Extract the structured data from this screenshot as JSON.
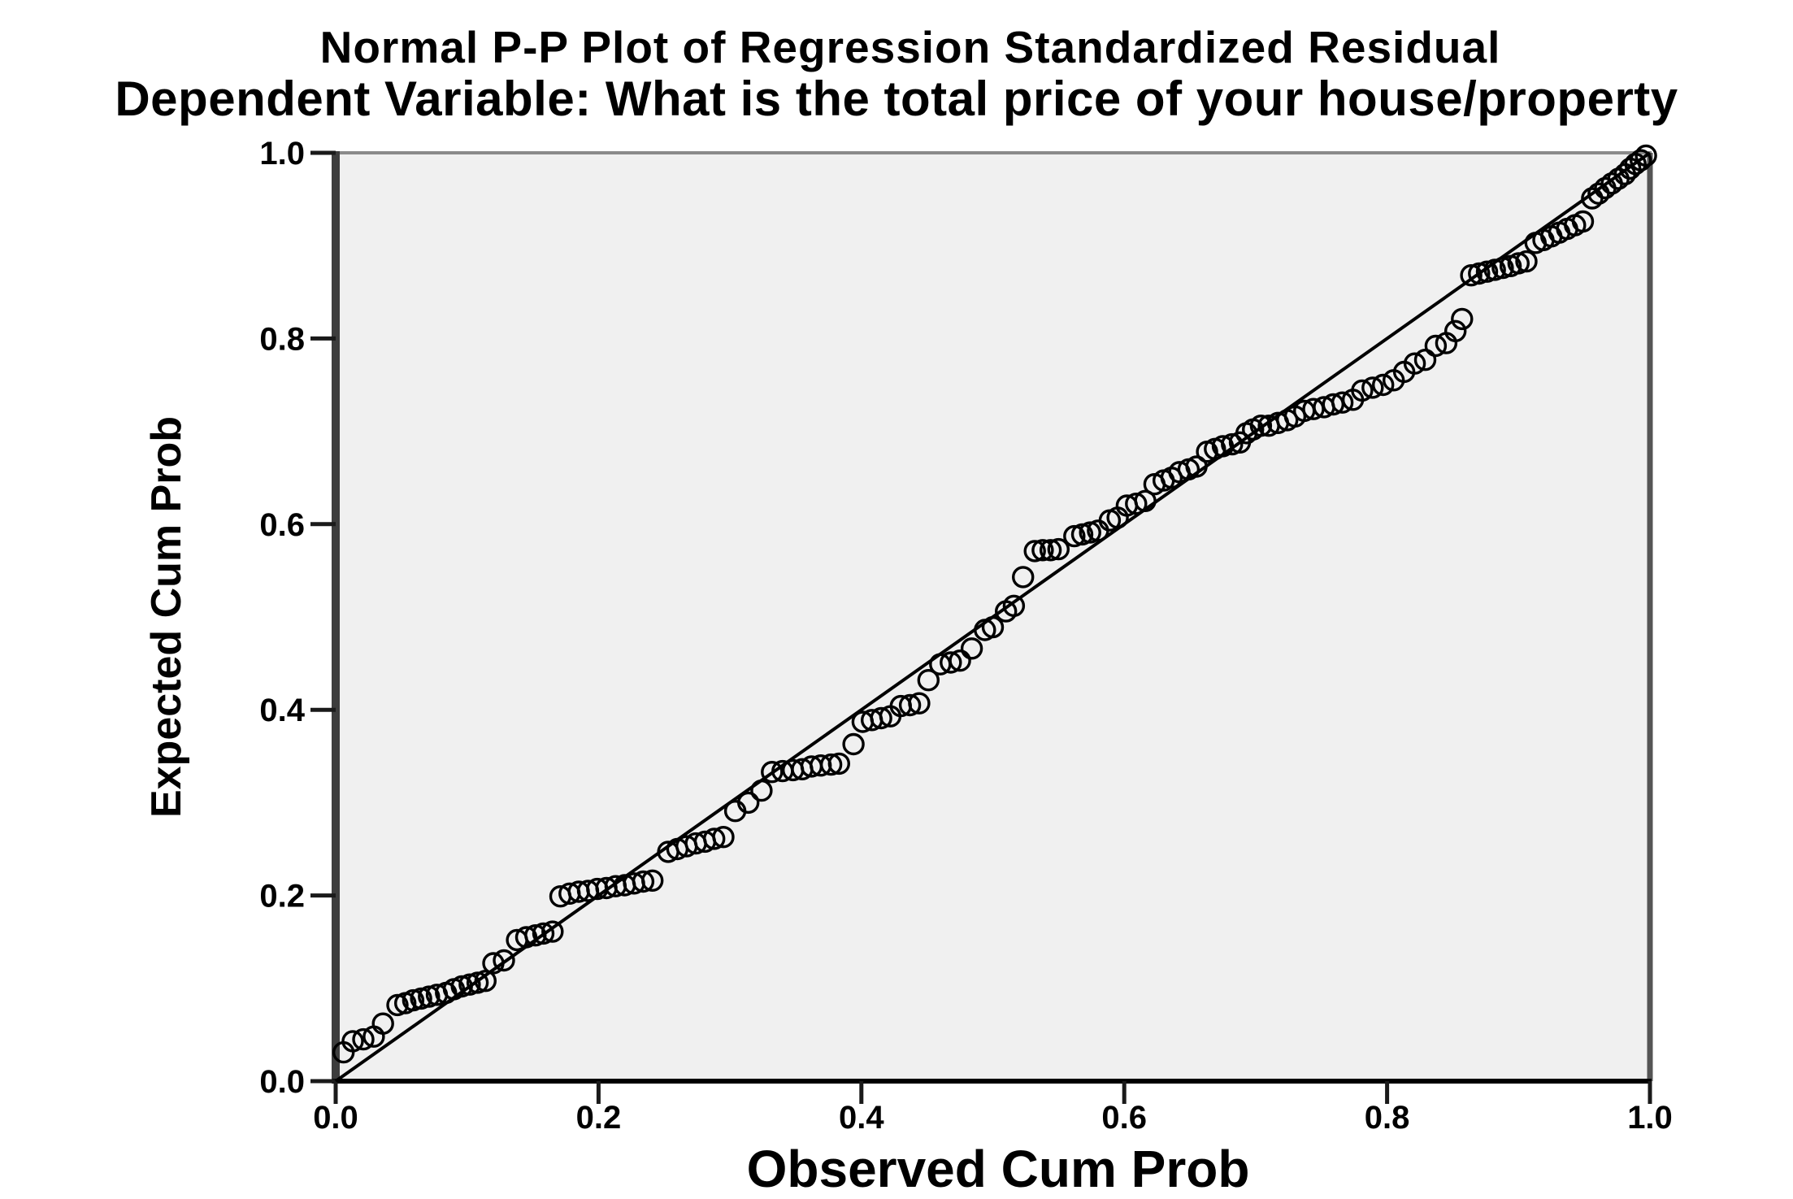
{
  "chart_data": {
    "type": "scatter",
    "title": "Normal P-P Plot of Regression Standardized Residual",
    "subtitle": "Dependent Variable: What is the total price of your house/property",
    "xlabel": "Observed Cum Prob",
    "ylabel": "Expected Cum Prob",
    "xlim": [
      0.0,
      1.0
    ],
    "ylim": [
      0.0,
      1.0
    ],
    "x_ticks": [
      "0.0",
      "0.2",
      "0.4",
      "0.6",
      "0.8",
      "1.0"
    ],
    "y_ticks": [
      "0.0",
      "0.2",
      "0.4",
      "0.6",
      "0.8",
      "1.0"
    ],
    "grid": false,
    "legend": null,
    "marker": "open-circle",
    "colors": {
      "plot_bg": "#f0f0f0",
      "marker_stroke": "#000000",
      "reference_line": "#000000",
      "axis_left": "#3d3d3d",
      "axis_bottom": "#000000",
      "border_top": "#8a8a8a",
      "border_right": "#555555",
      "tick": "#1a1a1a",
      "text": "#000000"
    },
    "reference_line": {
      "from": [
        0,
        0
      ],
      "to": [
        1,
        1
      ]
    },
    "series": [
      {
        "name": "Regression Standardized Residual",
        "points": [
          [
            0.006,
            0.031
          ],
          [
            0.013,
            0.043
          ],
          [
            0.021,
            0.045
          ],
          [
            0.029,
            0.048
          ],
          [
            0.036,
            0.062
          ],
          [
            0.047,
            0.082
          ],
          [
            0.053,
            0.084
          ],
          [
            0.059,
            0.087
          ],
          [
            0.065,
            0.089
          ],
          [
            0.071,
            0.091
          ],
          [
            0.077,
            0.093
          ],
          [
            0.084,
            0.095
          ],
          [
            0.09,
            0.099
          ],
          [
            0.096,
            0.102
          ],
          [
            0.102,
            0.104
          ],
          [
            0.108,
            0.106
          ],
          [
            0.114,
            0.108
          ],
          [
            0.12,
            0.127
          ],
          [
            0.128,
            0.13
          ],
          [
            0.138,
            0.152
          ],
          [
            0.145,
            0.155
          ],
          [
            0.152,
            0.157
          ],
          [
            0.158,
            0.159
          ],
          [
            0.165,
            0.161
          ],
          [
            0.171,
            0.199
          ],
          [
            0.178,
            0.202
          ],
          [
            0.185,
            0.204
          ],
          [
            0.192,
            0.205
          ],
          [
            0.199,
            0.207
          ],
          [
            0.206,
            0.208
          ],
          [
            0.213,
            0.21
          ],
          [
            0.22,
            0.211
          ],
          [
            0.227,
            0.213
          ],
          [
            0.234,
            0.215
          ],
          [
            0.241,
            0.216
          ],
          [
            0.253,
            0.247
          ],
          [
            0.26,
            0.25
          ],
          [
            0.267,
            0.253
          ],
          [
            0.274,
            0.256
          ],
          [
            0.281,
            0.258
          ],
          [
            0.288,
            0.261
          ],
          [
            0.295,
            0.263
          ],
          [
            0.304,
            0.291
          ],
          [
            0.314,
            0.3
          ],
          [
            0.324,
            0.313
          ],
          [
            0.332,
            0.333
          ],
          [
            0.34,
            0.334
          ],
          [
            0.348,
            0.335
          ],
          [
            0.355,
            0.336
          ],
          [
            0.362,
            0.339
          ],
          [
            0.369,
            0.34
          ],
          [
            0.377,
            0.341
          ],
          [
            0.383,
            0.342
          ],
          [
            0.394,
            0.363
          ],
          [
            0.401,
            0.387
          ],
          [
            0.408,
            0.389
          ],
          [
            0.415,
            0.391
          ],
          [
            0.422,
            0.393
          ],
          [
            0.43,
            0.404
          ],
          [
            0.437,
            0.405
          ],
          [
            0.444,
            0.407
          ],
          [
            0.451,
            0.432
          ],
          [
            0.46,
            0.449
          ],
          [
            0.468,
            0.451
          ],
          [
            0.475,
            0.453
          ],
          [
            0.484,
            0.466
          ],
          [
            0.494,
            0.486
          ],
          [
            0.5,
            0.489
          ],
          [
            0.51,
            0.506
          ],
          [
            0.516,
            0.512
          ],
          [
            0.523,
            0.543
          ],
          [
            0.532,
            0.571
          ],
          [
            0.538,
            0.572
          ],
          [
            0.544,
            0.572
          ],
          [
            0.55,
            0.573
          ],
          [
            0.562,
            0.587
          ],
          [
            0.568,
            0.589
          ],
          [
            0.574,
            0.591
          ],
          [
            0.58,
            0.593
          ],
          [
            0.589,
            0.604
          ],
          [
            0.595,
            0.607
          ],
          [
            0.602,
            0.62
          ],
          [
            0.609,
            0.622
          ],
          [
            0.616,
            0.625
          ],
          [
            0.623,
            0.643
          ],
          [
            0.63,
            0.647
          ],
          [
            0.636,
            0.65
          ],
          [
            0.642,
            0.656
          ],
          [
            0.649,
            0.659
          ],
          [
            0.655,
            0.662
          ],
          [
            0.663,
            0.678
          ],
          [
            0.669,
            0.681
          ],
          [
            0.675,
            0.684
          ],
          [
            0.682,
            0.686
          ],
          [
            0.688,
            0.688
          ],
          [
            0.693,
            0.698
          ],
          [
            0.698,
            0.702
          ],
          [
            0.704,
            0.706
          ],
          [
            0.71,
            0.706
          ],
          [
            0.717,
            0.709
          ],
          [
            0.724,
            0.712
          ],
          [
            0.73,
            0.716
          ],
          [
            0.737,
            0.722
          ],
          [
            0.744,
            0.724
          ],
          [
            0.752,
            0.726
          ],
          [
            0.759,
            0.729
          ],
          [
            0.766,
            0.731
          ],
          [
            0.774,
            0.734
          ],
          [
            0.781,
            0.744
          ],
          [
            0.789,
            0.747
          ],
          [
            0.797,
            0.75
          ],
          [
            0.805,
            0.755
          ],
          [
            0.813,
            0.764
          ],
          [
            0.821,
            0.773
          ],
          [
            0.829,
            0.777
          ],
          [
            0.837,
            0.792
          ],
          [
            0.845,
            0.795
          ],
          [
            0.852,
            0.808
          ],
          [
            0.857,
            0.821
          ],
          [
            0.864,
            0.868
          ],
          [
            0.87,
            0.87
          ],
          [
            0.876,
            0.872
          ],
          [
            0.882,
            0.874
          ],
          [
            0.888,
            0.876
          ],
          [
            0.894,
            0.878
          ],
          [
            0.9,
            0.881
          ],
          [
            0.906,
            0.883
          ],
          [
            0.913,
            0.903
          ],
          [
            0.919,
            0.906
          ],
          [
            0.925,
            0.91
          ],
          [
            0.931,
            0.914
          ],
          [
            0.937,
            0.918
          ],
          [
            0.943,
            0.922
          ],
          [
            0.949,
            0.926
          ],
          [
            0.956,
            0.951
          ],
          [
            0.961,
            0.956
          ],
          [
            0.966,
            0.962
          ],
          [
            0.971,
            0.967
          ],
          [
            0.976,
            0.972
          ],
          [
            0.981,
            0.977
          ],
          [
            0.985,
            0.983
          ],
          [
            0.989,
            0.988
          ],
          [
            0.993,
            0.992
          ],
          [
            0.997,
            0.997
          ]
        ]
      }
    ]
  }
}
